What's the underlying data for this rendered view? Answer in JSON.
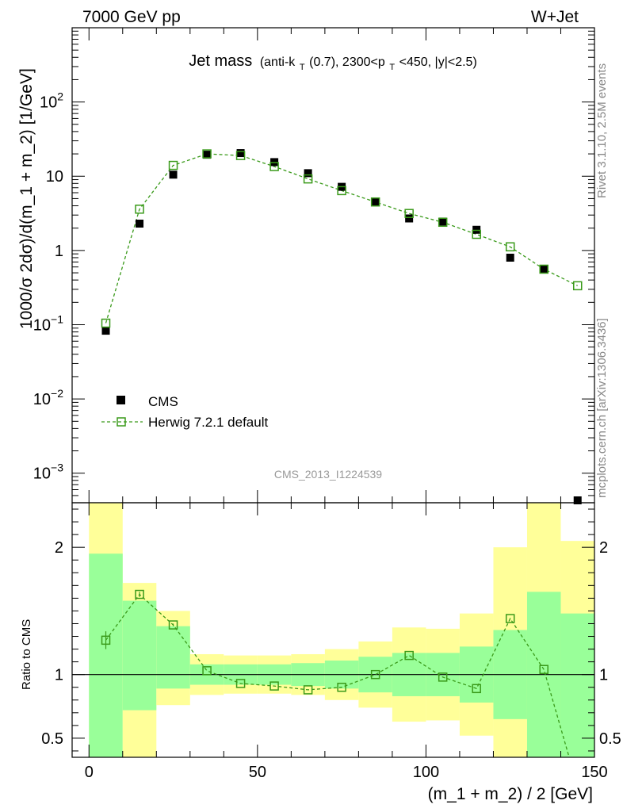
{
  "header": {
    "left": "7000 GeV pp",
    "right": "W+Jet"
  },
  "side_labels": {
    "rivet": "Rivet 3.1.10,  2.5M events",
    "mcplots": "mcplots.cern.ch [arXiv:1306.3436]"
  },
  "watermark": "CMS_2013_I1224539",
  "colors": {
    "mc": "#3a9a1a",
    "band_inner": "#99ff99",
    "band_outer": "#ffff99",
    "data": "#000000"
  },
  "chart_data": [
    {
      "type": "scatter",
      "title": "Jet mass",
      "subtitle_parts": {
        "open": "(anti-k",
        "sub_t1": "T",
        "mid1": "(0.7), 2300<p",
        "sub_t2": "T",
        "close": "<450, |y|<2.5)"
      },
      "ylabel": "1000/σ 2dσ)/d(m_1 + m_2) [1/GeV]",
      "yscale": "log",
      "ylim": [
        0.0004,
        1000
      ],
      "xlim": [
        -5,
        150
      ],
      "y_ticks": [
        {
          "value": 0.001,
          "base": "10",
          "exp": "−3"
        },
        {
          "value": 0.01,
          "base": "10",
          "exp": "−2"
        },
        {
          "value": 0.1,
          "base": "10",
          "exp": "−1"
        },
        {
          "value": 1,
          "base": "1",
          "exp": ""
        },
        {
          "value": 10,
          "base": "10",
          "exp": ""
        },
        {
          "value": 100,
          "base": "10",
          "exp": "2"
        }
      ],
      "legend": {
        "position": "middle-left"
      },
      "series": [
        {
          "name": "CMS",
          "marker": "filled-square",
          "x": [
            5,
            15,
            25,
            35,
            45,
            55,
            65,
            75,
            85,
            95,
            105,
            115,
            125,
            135,
            145
          ],
          "y": [
            0.083,
            2.3,
            10.5,
            19.5,
            20.5,
            15.5,
            11.0,
            7.2,
            4.5,
            2.7,
            2.45,
            1.9,
            0.8,
            0.56,
            0.00036
          ]
        },
        {
          "name": "Herwig 7.2.1 default",
          "marker": "open-square",
          "x": [
            5,
            15,
            25,
            35,
            45,
            55,
            65,
            75,
            85,
            95,
            105,
            115,
            125,
            135,
            145
          ],
          "y": [
            0.105,
            3.6,
            14.0,
            20.0,
            19.0,
            13.5,
            9.2,
            6.4,
            4.5,
            3.15,
            2.4,
            1.65,
            1.12,
            0.56,
            0.335
          ]
        }
      ]
    },
    {
      "type": "scatter",
      "ylabel": "Ratio to CMS",
      "xlabel": "(m_1 + m_2) / 2 [GeV]",
      "ylim": [
        0.35,
        2.35
      ],
      "xlim": [
        -5,
        150
      ],
      "x_ticks": [
        0,
        50,
        100,
        150
      ],
      "y_ticks": [
        0.5,
        1,
        2
      ],
      "bands": [
        {
          "x0": 0,
          "x1": 10,
          "outer": [
            0.0,
            2.35
          ],
          "inner": [
            0.0,
            1.95
          ]
        },
        {
          "x0": 10,
          "x1": 20,
          "outer": [
            0.0,
            1.72
          ],
          "inner": [
            0.72,
            1.58
          ]
        },
        {
          "x0": 20,
          "x1": 30,
          "outer": [
            0.76,
            1.5
          ],
          "inner": [
            0.89,
            1.38
          ]
        },
        {
          "x0": 30,
          "x1": 40,
          "outer": [
            0.84,
            1.16
          ],
          "inner": [
            0.92,
            1.08
          ]
        },
        {
          "x0": 40,
          "x1": 50,
          "outer": [
            0.85,
            1.15
          ],
          "inner": [
            0.92,
            1.08
          ]
        },
        {
          "x0": 50,
          "x1": 60,
          "outer": [
            0.85,
            1.15
          ],
          "inner": [
            0.92,
            1.08
          ]
        },
        {
          "x0": 60,
          "x1": 70,
          "outer": [
            0.84,
            1.16
          ],
          "inner": [
            0.91,
            1.09
          ]
        },
        {
          "x0": 70,
          "x1": 80,
          "outer": [
            0.8,
            1.2
          ],
          "inner": [
            0.89,
            1.11
          ]
        },
        {
          "x0": 80,
          "x1": 90,
          "outer": [
            0.74,
            1.26
          ],
          "inner": [
            0.86,
            1.14
          ]
        },
        {
          "x0": 90,
          "x1": 100,
          "outer": [
            0.63,
            1.37
          ],
          "inner": [
            0.83,
            1.17
          ]
        },
        {
          "x0": 100,
          "x1": 110,
          "outer": [
            0.64,
            1.36
          ],
          "inner": [
            0.83,
            1.17
          ]
        },
        {
          "x0": 110,
          "x1": 120,
          "outer": [
            0.52,
            1.48
          ],
          "inner": [
            0.78,
            1.22
          ]
        },
        {
          "x0": 120,
          "x1": 130,
          "outer": [
            0.0,
            2.0
          ],
          "inner": [
            0.65,
            1.35
          ]
        },
        {
          "x0": 130,
          "x1": 140,
          "outer": [
            0.0,
            2.35
          ],
          "inner": [
            0.0,
            1.65
          ]
        },
        {
          "x0": 140,
          "x1": 150,
          "outer": [
            0.0,
            2.05
          ],
          "inner": [
            0.0,
            1.48
          ]
        }
      ],
      "series": [
        {
          "name": "Herwig 7.2.1 default",
          "x": [
            5,
            15,
            25,
            35,
            45,
            55,
            65,
            75,
            85,
            95,
            105,
            115,
            125,
            135,
            142.5
          ],
          "y": [
            1.27,
            1.63,
            1.39,
            1.03,
            0.93,
            0.91,
            0.88,
            0.9,
            1.0,
            1.15,
            0.98,
            0.89,
            1.44,
            1.04,
            0.35
          ],
          "err": [
            0.07,
            0.02,
            0.01,
            0.0,
            0.0,
            0.0,
            0.0,
            0.0,
            0.0,
            0.0,
            0.0,
            0.0,
            0.0,
            0.0,
            0.0
          ]
        }
      ]
    }
  ]
}
